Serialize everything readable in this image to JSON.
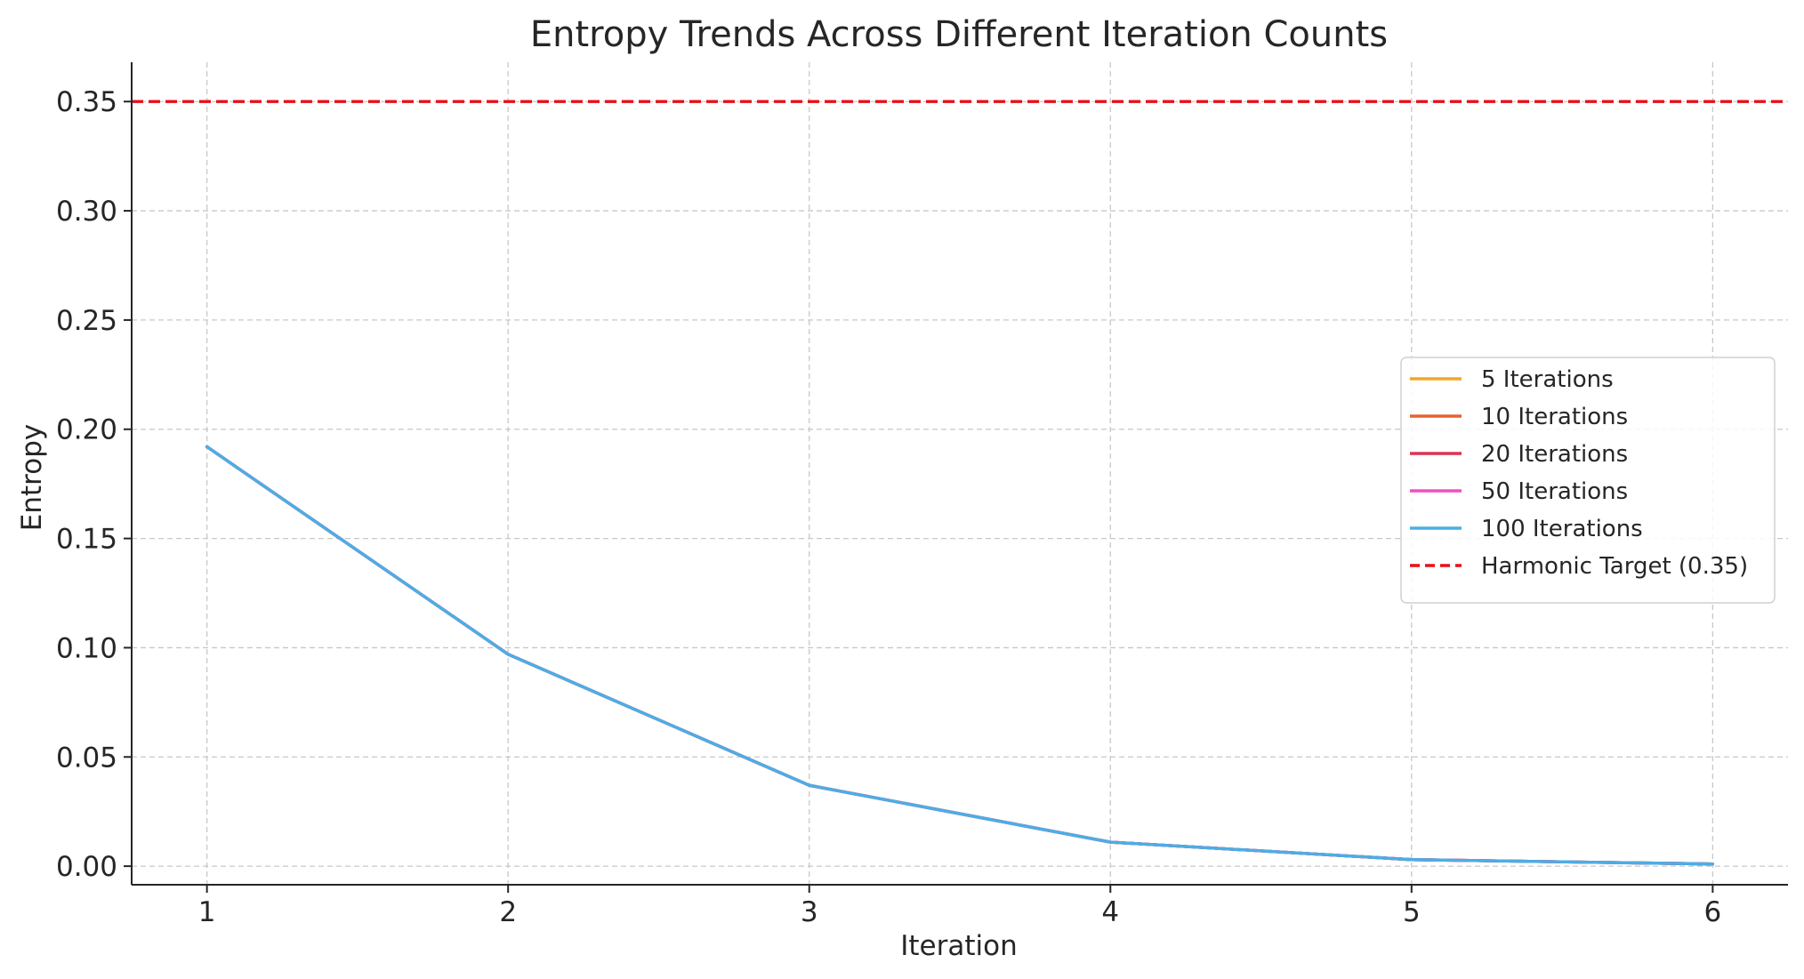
{
  "chart_data": {
    "type": "line",
    "title": "Entropy Trends Across Different Iteration Counts",
    "xlabel": "Iteration",
    "ylabel": "Entropy",
    "x": [
      1,
      2,
      3,
      4,
      5,
      6
    ],
    "xlim": [
      0.75,
      6.25
    ],
    "ylim": [
      -0.0085,
      0.368
    ],
    "xticks": [
      1,
      2,
      3,
      4,
      5,
      6
    ],
    "yticks": [
      0.0,
      0.05,
      0.1,
      0.15,
      0.2,
      0.25,
      0.3,
      0.35
    ],
    "ytick_labels": [
      "0.00",
      "0.05",
      "0.10",
      "0.15",
      "0.20",
      "0.25",
      "0.30",
      "0.35"
    ],
    "grid": true,
    "legend_position": "center-right",
    "series": [
      {
        "name": "5 Iterations",
        "color": "#f5a623",
        "values": [
          0.192,
          0.097,
          0.037,
          0.011,
          0.003,
          0.001
        ]
      },
      {
        "name": "10 Iterations",
        "color": "#e8622c",
        "values": [
          0.192,
          0.097,
          0.037,
          0.011,
          0.003,
          0.001
        ]
      },
      {
        "name": "20 Iterations",
        "color": "#dc3553",
        "values": [
          0.192,
          0.097,
          0.037,
          0.011,
          0.003,
          0.001
        ]
      },
      {
        "name": "50 Iterations",
        "color": "#f24fc0",
        "values": [
          0.192,
          0.097,
          0.037,
          0.011,
          0.003,
          0.001
        ]
      },
      {
        "name": "100 Iterations",
        "color": "#4aaee6",
        "values": [
          0.192,
          0.097,
          0.037,
          0.011,
          0.003,
          0.001
        ]
      }
    ],
    "reference_lines": [
      {
        "name": "Harmonic Target (0.35)",
        "y": 0.35,
        "color": "#e8101a",
        "style": "dashed"
      }
    ]
  }
}
